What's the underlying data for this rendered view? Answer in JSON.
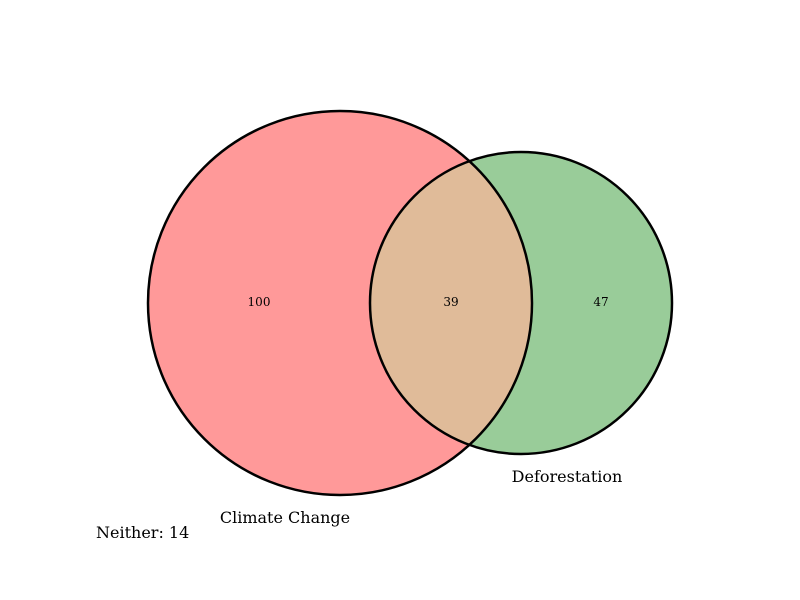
{
  "venn": {
    "sets": [
      {
        "name": "Climate Change",
        "only_count": "100",
        "fill_color": "#ff9999"
      },
      {
        "name": "Deforestation",
        "only_count": "47",
        "fill_color": "#99cc99"
      }
    ],
    "intersection": {
      "count": "39",
      "fill_color": "#e0bb99"
    },
    "outline_color": "#000000",
    "neither_text": "Neither: 14"
  }
}
